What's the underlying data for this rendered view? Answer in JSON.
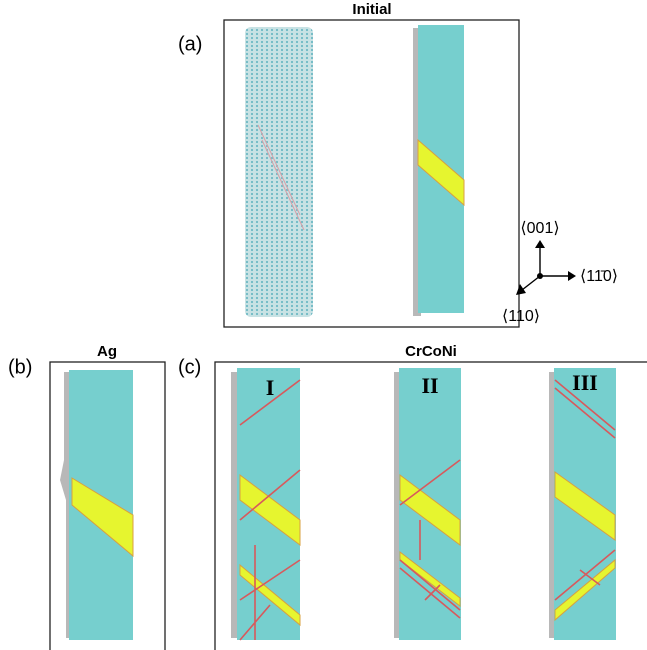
{
  "panels": [
    {
      "label": "(a)",
      "title": "Initial"
    },
    {
      "label": "(b)",
      "title": "Ag"
    },
    {
      "label": "(c)",
      "title": "CrCoNi",
      "sub_labels": [
        "I",
        "II",
        "III"
      ]
    }
  ],
  "axes": {
    "up": "⟨001⟩",
    "right": "⟨11̄0⟩",
    "down": "⟨110⟩"
  }
}
